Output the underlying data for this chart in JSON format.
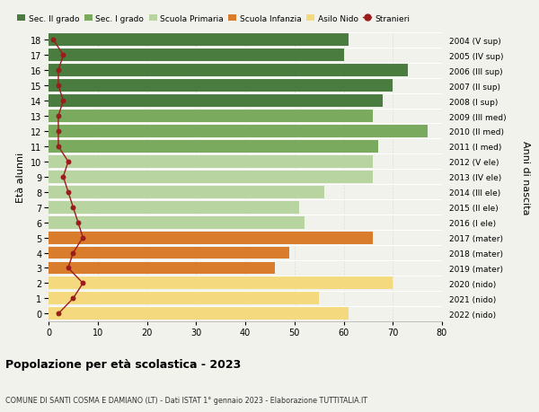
{
  "ages": [
    18,
    17,
    16,
    15,
    14,
    13,
    12,
    11,
    10,
    9,
    8,
    7,
    6,
    5,
    4,
    3,
    2,
    1,
    0
  ],
  "bar_values": [
    61,
    60,
    73,
    70,
    68,
    66,
    77,
    67,
    66,
    66,
    56,
    51,
    52,
    66,
    49,
    46,
    70,
    55,
    61
  ],
  "stranieri_values": [
    1,
    3,
    2,
    2,
    3,
    2,
    2,
    2,
    4,
    3,
    4,
    5,
    6,
    7,
    5,
    4,
    7,
    5,
    2
  ],
  "right_labels": [
    "2004 (V sup)",
    "2005 (IV sup)",
    "2006 (III sup)",
    "2007 (II sup)",
    "2008 (I sup)",
    "2009 (III med)",
    "2010 (II med)",
    "2011 (I med)",
    "2012 (V ele)",
    "2013 (IV ele)",
    "2014 (III ele)",
    "2015 (II ele)",
    "2016 (I ele)",
    "2017 (mater)",
    "2018 (mater)",
    "2019 (mater)",
    "2020 (nido)",
    "2021 (nido)",
    "2022 (nido)"
  ],
  "bar_colors": [
    "#4a7c3f",
    "#4a7c3f",
    "#4a7c3f",
    "#4a7c3f",
    "#4a7c3f",
    "#7aaa5e",
    "#7aaa5e",
    "#7aaa5e",
    "#b8d4a0",
    "#b8d4a0",
    "#b8d4a0",
    "#b8d4a0",
    "#b8d4a0",
    "#d97c2b",
    "#d97c2b",
    "#d97c2b",
    "#f5d97e",
    "#f5d97e",
    "#f5d97e"
  ],
  "legend_colors": [
    "#4a7c3f",
    "#7aaa5e",
    "#b8d4a0",
    "#d97c2b",
    "#f5d97e",
    "#c0392b"
  ],
  "legend_labels": [
    "Sec. II grado",
    "Sec. I grado",
    "Scuola Primaria",
    "Scuola Infanzia",
    "Asilo Nido",
    "Stranieri"
  ],
  "ylabel": "Età alunni",
  "right_ylabel": "Anni di nascita",
  "title": "Popolazione per età scolastica - 2023",
  "subtitle": "COMUNE DI SANTI COSMA E DAMIANO (LT) - Dati ISTAT 1° gennaio 2023 - Elaborazione TUTTITALIA.IT",
  "xlim": [
    0,
    80
  ],
  "xticks": [
    0,
    10,
    20,
    30,
    40,
    50,
    60,
    70,
    80
  ],
  "bar_height": 0.82,
  "background_color": "#f2f2ed",
  "stranieri_color": "#9b1c1c",
  "grid_color": "#ffffff"
}
